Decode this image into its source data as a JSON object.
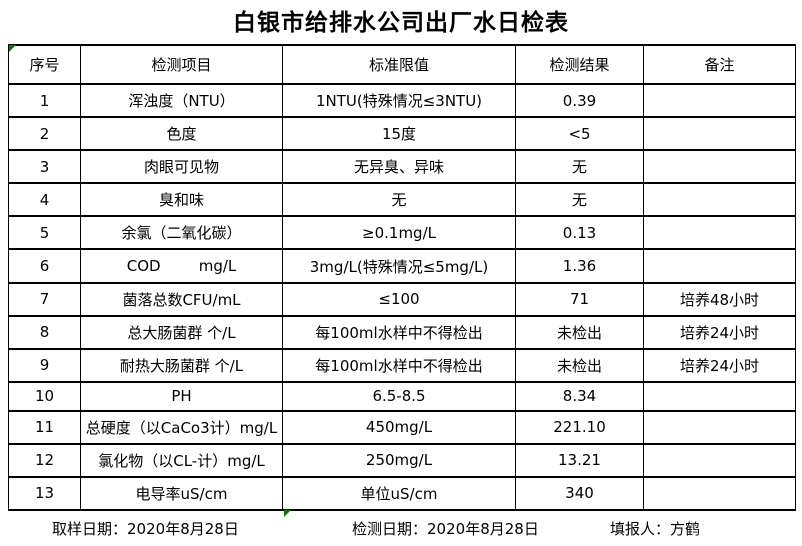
{
  "title": "白银市给排水公司出厂水日检表",
  "table": {
    "headers": [
      "序号",
      "检测项目",
      "标准限值",
      "检测结果",
      "备注"
    ],
    "columns_order": [
      "no",
      "item",
      "limit",
      "result",
      "note"
    ],
    "rows": [
      {
        "no": "1",
        "item": "浑浊度（NTU）",
        "limit": "1NTU(特殊情况≤3NTU)",
        "result": "0.39",
        "note": ""
      },
      {
        "no": "2",
        "item": "色度",
        "limit": "15度",
        "result": "<5",
        "note": ""
      },
      {
        "no": "3",
        "item": "肉眼可见物",
        "limit": "无异臭、异味",
        "result": "无",
        "note": ""
      },
      {
        "no": "4",
        "item": "臭和味",
        "limit": "无",
        "result": "无",
        "note": ""
      },
      {
        "no": "5",
        "item": "余氯（二氧化碳）",
        "limit": "≥0.1mg/L",
        "result": "0.13",
        "note": ""
      },
      {
        "no": "6",
        "item": "COD        mg/L",
        "limit": "3mg/L(特殊情况≤5mg/L)",
        "result": "1.36",
        "note": ""
      },
      {
        "no": "7",
        "item": "菌落总数CFU/mL",
        "limit": "≤100",
        "result": "71",
        "note": "培养48小时"
      },
      {
        "no": "8",
        "item": "总大肠菌群 个/L",
        "limit": "每100ml水样中不得检出",
        "result": "未检出",
        "note": "培养24小时"
      },
      {
        "no": "9",
        "item": "耐热大肠菌群 个/L",
        "limit": "每100ml水样中不得检出",
        "result": "未检出",
        "note": "培养24小时"
      },
      {
        "no": "10",
        "item": "PH",
        "limit": "6.5-8.5",
        "result": "8.34",
        "note": ""
      },
      {
        "no": "11",
        "item": "总硬度（以CaCo3计）mg/L",
        "limit": "450mg/L",
        "result": "221.10",
        "note": ""
      },
      {
        "no": "12",
        "item": "氯化物（以CL-计）mg/L",
        "limit": "250mg/L",
        "result": "13.21",
        "note": ""
      },
      {
        "no": "13",
        "item": "电导率uS/cm",
        "limit": "单位uS/cm",
        "result": "340",
        "note": ""
      }
    ]
  },
  "footer": {
    "sampling": {
      "label": "取样日期：",
      "value": "2020年8月28日"
    },
    "test": {
      "label": "检测日期：",
      "value": "2020年8月28日"
    },
    "reporter": {
      "label": "填报人：",
      "value": "方鹤"
    }
  },
  "markers": {
    "description": "excel-error-indicator",
    "color": "#008000"
  },
  "colors": {
    "background": "#ffffff",
    "text": "#000000",
    "border": "#000000"
  }
}
